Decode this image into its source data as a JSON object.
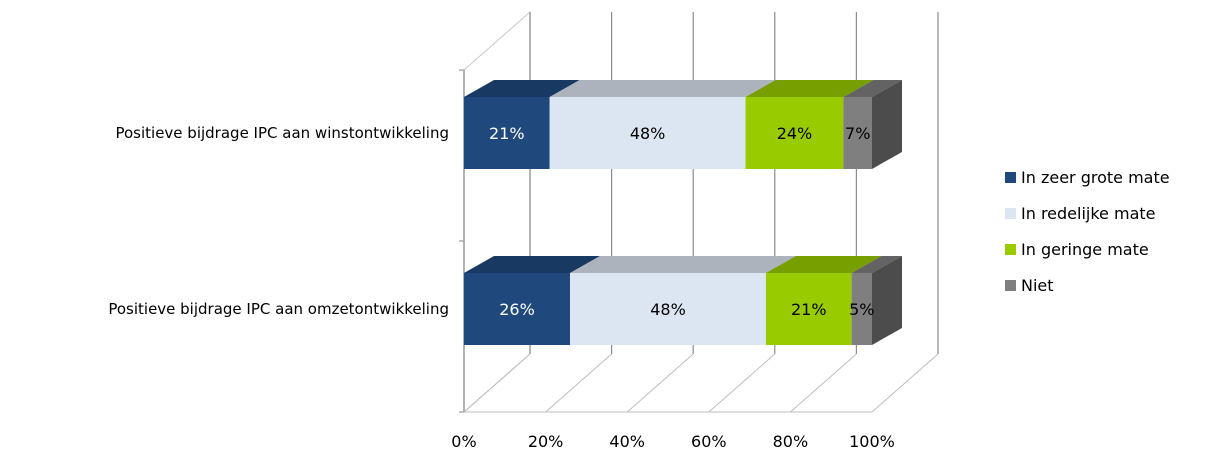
{
  "chart_data": {
    "type": "bar",
    "orientation": "horizontal",
    "stacked": "percent",
    "three_d": true,
    "categories": [
      "Positieve bijdrage IPC aan winstontwikkeling",
      "Positieve bijdrage IPC aan omzetontwikkeling"
    ],
    "series": [
      {
        "name": "In zeer grote mate",
        "values": [
          21,
          26
        ],
        "labels": [
          "21%",
          "26%"
        ],
        "color": "#1f497d",
        "label_color": "#ffffff"
      },
      {
        "name": "In redelijke mate",
        "values": [
          48,
          48
        ],
        "labels": [
          "48%",
          "48%"
        ],
        "color": "#dce6f2",
        "label_color": "#000000"
      },
      {
        "name": "In geringe mate",
        "values": [
          24,
          21
        ],
        "labels": [
          "24%",
          "21%"
        ],
        "color": "#99cc00",
        "label_color": "#000000"
      },
      {
        "name": "Niet",
        "values": [
          7,
          5
        ],
        "labels": [
          "7%",
          "5%"
        ],
        "color": "#7f7f7f",
        "label_color": "#000000"
      }
    ],
    "x_ticks": [
      "0%",
      "20%",
      "40%",
      "60%",
      "80%",
      "100%"
    ],
    "xlim": [
      0,
      100
    ],
    "grid": true,
    "legend_position": "right"
  }
}
